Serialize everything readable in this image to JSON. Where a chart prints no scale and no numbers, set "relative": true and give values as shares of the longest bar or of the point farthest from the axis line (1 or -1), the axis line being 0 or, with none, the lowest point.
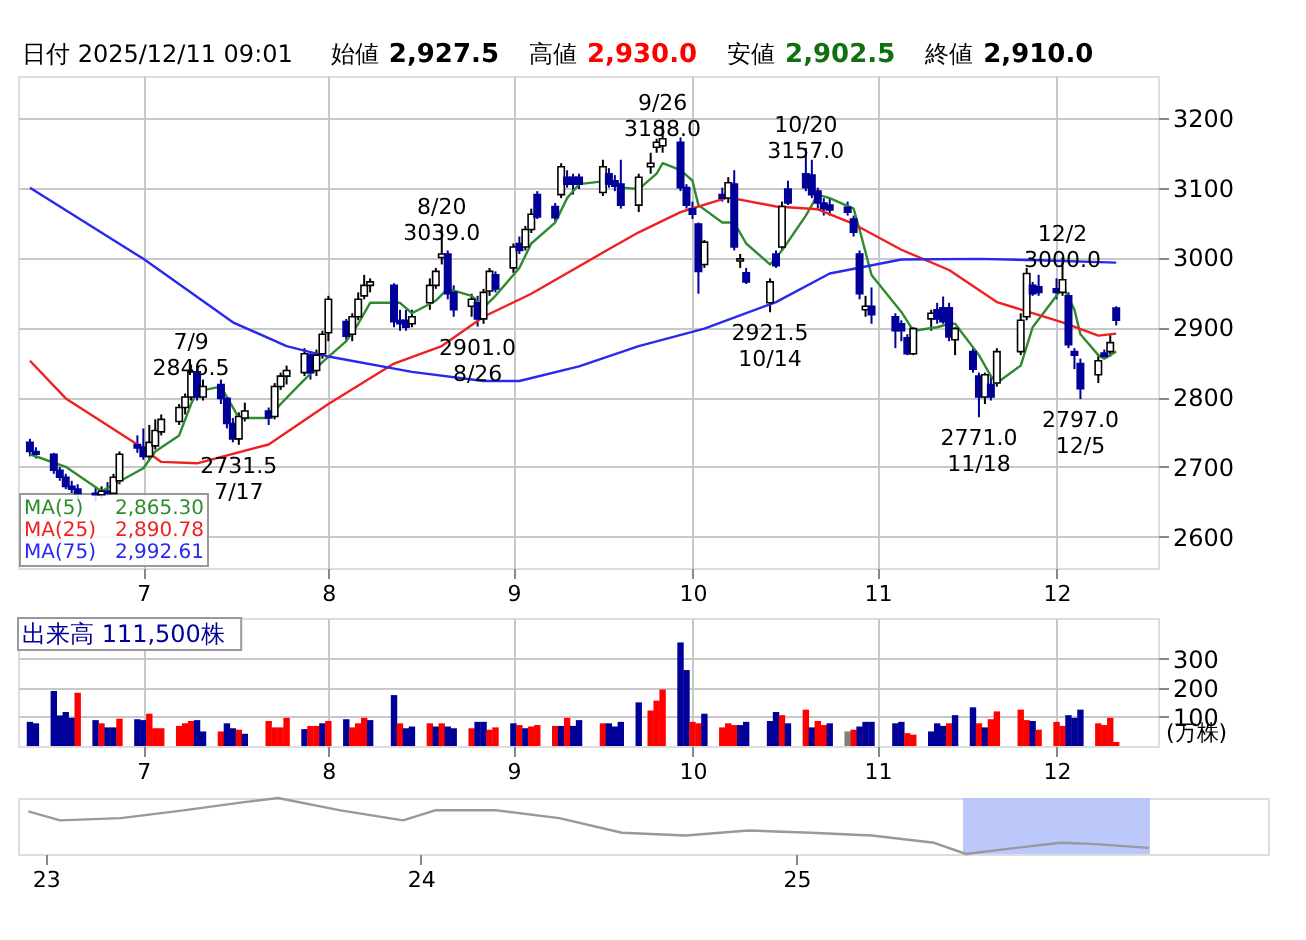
{
  "chart_data": [
    {
      "type": "candlestick",
      "title": "日付 2025/12/11 09:01",
      "annotations": [
        "始値 2,927.5",
        "高値 2,930.0",
        "安値 2,902.5",
        "終値 2,910.0",
        "2,865.30",
        "2,890.78",
        "2,992.61",
        {
          "text": "7/9\n2846.5",
          "x": "2025-07-09",
          "y": 2846.5
        },
        {
          "text": "2731.5\n7/17",
          "x": "2025-07-17",
          "y": 2731.5
        },
        {
          "text": "8/20\n3039.0",
          "x": "2025-08-20",
          "y": 3039
        },
        {
          "text": "2901.0\n8/26",
          "x": "2025-08-26",
          "y": 2901
        },
        {
          "text": "9/26\n3188.0",
          "x": "2025-09-26",
          "y": 3188
        },
        {
          "text": "2921.5\n10/14",
          "x": "2025-10-14",
          "y": 2921.5
        },
        {
          "text": "10/20\n3157.0",
          "x": "2025-10-20",
          "y": 3157
        },
        {
          "text": "2771.0\n11/18",
          "x": "2025-11-18",
          "y": 2771
        },
        {
          "text": "12/2\n3000.0",
          "x": "2025-12-02",
          "y": 3000
        },
        {
          "text": "2797.0\n12/5",
          "x": "2025-12-05",
          "y": 2797
        }
      ],
      "x": [
        "2025-06-12",
        "2025-06-13",
        "2025-06-16",
        "2025-06-17",
        "2025-06-18",
        "2025-06-19",
        "2025-06-20",
        "2025-06-23",
        "2025-06-24",
        "2025-06-25",
        "2025-06-26",
        "2025-06-27",
        "2025-06-30",
        "2025-07-01",
        "2025-07-02",
        "2025-07-03",
        "2025-07-04",
        "2025-07-07",
        "2025-07-08",
        "2025-07-09",
        "2025-07-10",
        "2025-07-11",
        "2025-07-14",
        "2025-07-15",
        "2025-07-16",
        "2025-07-17",
        "2025-07-18",
        "2025-07-22",
        "2025-07-23",
        "2025-07-24",
        "2025-07-25",
        "2025-07-28",
        "2025-07-29",
        "2025-07-30",
        "2025-07-31",
        "2025-08-01",
        "2025-08-04",
        "2025-08-05",
        "2025-08-06",
        "2025-08-07",
        "2025-08-08",
        "2025-08-12",
        "2025-08-13",
        "2025-08-14",
        "2025-08-15",
        "2025-08-18",
        "2025-08-19",
        "2025-08-20",
        "2025-08-21",
        "2025-08-22",
        "2025-08-25",
        "2025-08-26",
        "2025-08-27",
        "2025-08-28",
        "2025-08-29",
        "2025-09-01",
        "2025-09-02",
        "2025-09-03",
        "2025-09-04",
        "2025-09-05",
        "2025-09-08",
        "2025-09-09",
        "2025-09-10",
        "2025-09-11",
        "2025-09-12",
        "2025-09-16",
        "2025-09-17",
        "2025-09-18",
        "2025-09-19",
        "2025-09-22",
        "2025-09-24",
        "2025-09-25",
        "2025-09-26",
        "2025-09-29",
        "2025-09-30",
        "2025-10-01",
        "2025-10-02",
        "2025-10-03",
        "2025-10-06",
        "2025-10-07",
        "2025-10-08",
        "2025-10-09",
        "2025-10-10",
        "2025-10-14",
        "2025-10-15",
        "2025-10-16",
        "2025-10-17",
        "2025-10-20",
        "2025-10-21",
        "2025-10-22",
        "2025-10-23",
        "2025-10-24",
        "2025-10-27",
        "2025-10-28",
        "2025-10-29",
        "2025-10-30",
        "2025-10-31",
        "2025-11-04",
        "2025-11-05",
        "2025-11-06",
        "2025-11-07",
        "2025-11-10",
        "2025-11-11",
        "2025-11-12",
        "2025-11-13",
        "2025-11-14",
        "2025-11-17",
        "2025-11-18",
        "2025-11-19",
        "2025-11-20",
        "2025-11-21",
        "2025-11-25",
        "2025-11-26",
        "2025-11-27",
        "2025-11-28",
        "2025-12-01",
        "2025-12-02",
        "2025-12-03",
        "2025-12-04",
        "2025-12-05",
        "2025-12-08",
        "2025-12-09",
        "2025-12-10",
        "2025-12-11"
      ],
      "ohlc": [
        [
          2735,
          2740,
          2715,
          2722
        ],
        [
          2722,
          2728,
          2712,
          2718
        ],
        [
          2718,
          2720,
          2690,
          2695
        ],
        [
          2695,
          2700,
          2680,
          2685
        ],
        [
          2685,
          2690,
          2668,
          2672
        ],
        [
          2672,
          2680,
          2660,
          2668
        ],
        [
          2668,
          2675,
          2655,
          2662
        ],
        [
          2662,
          2670,
          2650,
          2660
        ],
        [
          2660,
          2672,
          2655,
          2665
        ],
        [
          2665,
          2678,
          2658,
          2662
        ],
        [
          2662,
          2690,
          2660,
          2685
        ],
        [
          2680,
          2722,
          2675,
          2718
        ],
        [
          2732,
          2745,
          2720,
          2727
        ],
        [
          2728,
          2755,
          2710,
          2715
        ],
        [
          2715,
          2760,
          2710,
          2735
        ],
        [
          2730,
          2768,
          2725,
          2752
        ],
        [
          2750,
          2775,
          2745,
          2768
        ],
        [
          2765,
          2790,
          2760,
          2785
        ],
        [
          2785,
          2805,
          2775,
          2800
        ],
        [
          2800,
          2846.5,
          2795,
          2836
        ],
        [
          2836,
          2840,
          2795,
          2800
        ],
        [
          2800,
          2825,
          2795,
          2815
        ],
        [
          2818,
          2825,
          2790,
          2798
        ],
        [
          2798,
          2800,
          2755,
          2762
        ],
        [
          2762,
          2770,
          2735,
          2740
        ],
        [
          2740,
          2778,
          2731.5,
          2772
        ],
        [
          2770,
          2792,
          2765,
          2780
        ],
        [
          2780,
          2785,
          2760,
          2770
        ],
        [
          2772,
          2820,
          2768,
          2815
        ],
        [
          2815,
          2835,
          2810,
          2830
        ],
        [
          2830,
          2845,
          2818,
          2838
        ],
        [
          2835,
          2870,
          2830,
          2862
        ],
        [
          2860,
          2865,
          2825,
          2835
        ],
        [
          2838,
          2868,
          2830,
          2860
        ],
        [
          2862,
          2895,
          2855,
          2890
        ],
        [
          2892,
          2945,
          2880,
          2940
        ],
        [
          2908,
          2912,
          2880,
          2887
        ],
        [
          2890,
          2920,
          2880,
          2915
        ],
        [
          2915,
          2950,
          2910,
          2940
        ],
        [
          2945,
          2975,
          2940,
          2960
        ],
        [
          2960,
          2970,
          2950,
          2965
        ],
        [
          2960,
          2963,
          2900,
          2908
        ],
        [
          2910,
          2925,
          2895,
          2905
        ],
        [
          2910,
          2925,
          2895,
          2900
        ],
        [
          2905,
          2925,
          2900,
          2915
        ],
        [
          2935,
          2970,
          2925,
          2960
        ],
        [
          2960,
          2985,
          2955,
          2980
        ],
        [
          3000,
          3039,
          2990,
          3005
        ],
        [
          3005,
          3010,
          2940,
          2948
        ],
        [
          2950,
          2960,
          2915,
          2925
        ],
        [
          2930,
          2948,
          2915,
          2940
        ],
        [
          2935,
          2945,
          2901,
          2912
        ],
        [
          2912,
          2955,
          2905,
          2950
        ],
        [
          2952,
          2985,
          2945,
          2980
        ],
        [
          2975,
          2980,
          2950,
          2955
        ],
        [
          2985,
          3020,
          2978,
          3015
        ],
        [
          3020,
          3030,
          3005,
          3010
        ],
        [
          3015,
          3045,
          3010,
          3040
        ],
        [
          3040,
          3070,
          3035,
          3062
        ],
        [
          3090,
          3095,
          3055,
          3058
        ],
        [
          3073,
          3078,
          3052,
          3057
        ],
        [
          3090,
          3135,
          3085,
          3130
        ],
        [
          3115,
          3125,
          3100,
          3105
        ],
        [
          3115,
          3120,
          3090,
          3105
        ],
        [
          3115,
          3120,
          3098,
          3105
        ],
        [
          3093,
          3140,
          3088,
          3130
        ],
        [
          3120,
          3128,
          3100,
          3105
        ],
        [
          3110,
          3118,
          3095,
          3102
        ],
        [
          3105,
          3140,
          3070,
          3075
        ],
        [
          3075,
          3120,
          3065,
          3115
        ],
        [
          3130,
          3150,
          3120,
          3135
        ],
        [
          3158,
          3170,
          3150,
          3165
        ],
        [
          3160,
          3188,
          3150,
          3170
        ],
        [
          3165,
          3172,
          3095,
          3100
        ],
        [
          3100,
          3105,
          3070,
          3075
        ],
        [
          3070,
          3080,
          3055,
          3062
        ],
        [
          3048,
          3050,
          2948,
          2980
        ],
        [
          2990,
          3025,
          2985,
          3022
        ],
        [
          3090,
          3100,
          3080,
          3085
        ],
        [
          3085,
          3115,
          3078,
          3107
        ],
        [
          3105,
          3125,
          3010,
          3015
        ],
        [
          2995,
          3005,
          2985,
          2998
        ],
        [
          2978,
          2985,
          2962,
          2965
        ],
        [
          2935,
          2970,
          2921.5,
          2965
        ],
        [
          3005,
          3010,
          2985,
          2988
        ],
        [
          3015,
          3080,
          3010,
          3073
        ],
        [
          3098,
          3110,
          3075,
          3078
        ],
        [
          3120,
          3157,
          3095,
          3100
        ],
        [
          3118,
          3140,
          3085,
          3090
        ],
        [
          3095,
          3100,
          3070,
          3078
        ],
        [
          3078,
          3085,
          3060,
          3070
        ],
        [
          3075,
          3085,
          3060,
          3068
        ],
        [
          3072,
          3080,
          3060,
          3065
        ],
        [
          3055,
          3060,
          3030,
          3036
        ],
        [
          3005,
          3010,
          2940,
          2948
        ],
        [
          2925,
          2945,
          2915,
          2930
        ],
        [
          2930,
          2957,
          2905,
          2918
        ],
        [
          2915,
          2920,
          2870,
          2895
        ],
        [
          2905,
          2910,
          2880,
          2895
        ],
        [
          2885,
          2890,
          2860,
          2862
        ],
        [
          2862,
          2900,
          2860,
          2898
        ],
        [
          2912,
          2925,
          2895,
          2920
        ],
        [
          2925,
          2935,
          2905,
          2912
        ],
        [
          2928,
          2944,
          2905,
          2908
        ],
        [
          2928,
          2935,
          2880,
          2886
        ],
        [
          2882,
          2900,
          2860,
          2898
        ],
        [
          2865,
          2870,
          2835,
          2840
        ],
        [
          2830,
          2835,
          2771,
          2800
        ],
        [
          2800,
          2835,
          2790,
          2832
        ],
        [
          2818,
          2830,
          2795,
          2800
        ],
        [
          2820,
          2870,
          2815,
          2865
        ],
        [
          2865,
          2920,
          2860,
          2910
        ],
        [
          2915,
          2985,
          2910,
          2977
        ],
        [
          2960,
          2965,
          2945,
          2948
        ],
        [
          2958,
          2975,
          2945,
          2950
        ],
        [
          2955,
          2970,
          2940,
          2950
        ],
        [
          2950,
          3000,
          2945,
          2968
        ],
        [
          2945,
          2950,
          2870,
          2875
        ],
        [
          2865,
          2870,
          2840,
          2860
        ],
        [
          2848,
          2855,
          2797,
          2812
        ],
        [
          2832,
          2860,
          2820,
          2852
        ],
        [
          2863,
          2868,
          2855,
          2858
        ],
        [
          2865,
          2890,
          2858,
          2878
        ],
        [
          2927.5,
          2930,
          2902.5,
          2910
        ]
      ],
      "series": [
        {
          "name": "MA(5)",
          "type": "line",
          "color": "#2e8b2e",
          "x": [
            "2025-06-12",
            "2025-06-18",
            "2025-06-24",
            "2025-07-01",
            "2025-07-03",
            "2025-07-07",
            "2025-07-09",
            "2025-07-10",
            "2025-07-14",
            "2025-07-15",
            "2025-07-17",
            "2025-07-22",
            "2025-07-24",
            "2025-07-28",
            "2025-07-31",
            "2025-08-04",
            "2025-08-06",
            "2025-08-08",
            "2025-08-13",
            "2025-08-15",
            "2025-08-19",
            "2025-08-21",
            "2025-08-25",
            "2025-08-27",
            "2025-08-29",
            "2025-09-02",
            "2025-09-04",
            "2025-09-08",
            "2025-09-10",
            "2025-09-12",
            "2025-09-17",
            "2025-09-19",
            "2025-09-22",
            "2025-09-25",
            "2025-09-26",
            "2025-09-29",
            "2025-10-01",
            "2025-10-02",
            "2025-10-06",
            "2025-10-08",
            "2025-10-10",
            "2025-10-14",
            "2025-10-16",
            "2025-10-20",
            "2025-10-22",
            "2025-10-24",
            "2025-10-28",
            "2025-10-29",
            "2025-10-31",
            "2025-11-05",
            "2025-11-07",
            "2025-11-11",
            "2025-11-13",
            "2025-11-14",
            "2025-11-18",
            "2025-11-20",
            "2025-11-21",
            "2025-11-25",
            "2025-11-27",
            "2025-12-01",
            "2025-12-02",
            "2025-12-04",
            "2025-12-05",
            "2025-12-08",
            "2025-12-09",
            "2025-12-11"
          ],
          "values": [
            2718,
            2700,
            2665,
            2698,
            2722,
            2745,
            2790,
            2808,
            2815,
            2800,
            2770,
            2770,
            2790,
            2825,
            2850,
            2880,
            2905,
            2935,
            2935,
            2920,
            2938,
            2955,
            2945,
            2928,
            2945,
            2985,
            3020,
            3050,
            3085,
            3105,
            3110,
            3100,
            3098,
            3120,
            3135,
            3125,
            3110,
            3075,
            3050,
            3050,
            3020,
            2990,
            3010,
            3060,
            3090,
            3085,
            3070,
            3040,
            2975,
            2922,
            2895,
            2900,
            2905,
            2905,
            2860,
            2830,
            2820,
            2845,
            2900,
            2945,
            2960,
            2925,
            2890,
            2860,
            2855,
            2865.3
          ]
        },
        {
          "name": "MA(25)",
          "type": "line",
          "color": "#f02020",
          "x": [
            "2025-06-12",
            "2025-06-18",
            "2025-06-30",
            "2025-07-04",
            "2025-07-10",
            "2025-07-22",
            "2025-08-01",
            "2025-08-12",
            "2025-08-20",
            "2025-08-27",
            "2025-09-04",
            "2025-09-16",
            "2025-09-22",
            "2025-09-29",
            "2025-10-07",
            "2025-10-15",
            "2025-10-22",
            "2025-10-28",
            "2025-11-05",
            "2025-11-13",
            "2025-11-21",
            "2025-12-02",
            "2025-12-08",
            "2025-12-11"
          ],
          "values": [
            2852,
            2798,
            2732,
            2707,
            2705,
            2732,
            2790,
            2848,
            2873,
            2915,
            2948,
            3007,
            3036,
            3065,
            3086,
            3073,
            3069,
            3048,
            3011,
            2982,
            2936,
            2907,
            2888,
            2890.78
          ]
        },
        {
          "name": "MA(75)",
          "type": "line",
          "color": "#2828f0",
          "x": [
            "2025-06-12",
            "2025-07-01",
            "2025-07-16",
            "2025-07-25",
            "2025-08-01",
            "2025-08-15",
            "2025-08-27",
            "2025-09-02",
            "2025-09-12",
            "2025-09-22",
            "2025-10-03",
            "2025-10-15",
            "2025-10-24",
            "2025-11-05",
            "2025-11-18",
            "2025-11-28",
            "2025-12-11"
          ],
          "values": [
            3100,
            2998,
            2907,
            2873,
            2858,
            2836,
            2823,
            2823,
            2844,
            2873,
            2898,
            2936,
            2977,
            2997,
            2998,
            2996,
            2992.61
          ]
        }
      ],
      "xlim": [
        "2025-06-10",
        "2025-12-18"
      ],
      "xticks": [
        {
          "value": "2025-07-01",
          "label": "7"
        },
        {
          "value": "2025-08-01",
          "label": "8"
        },
        {
          "value": "2025-09-01",
          "label": "9"
        },
        {
          "value": "2025-10-01",
          "label": "10"
        },
        {
          "value": "2025-11-01",
          "label": "11"
        },
        {
          "value": "2025-12-01",
          "label": "12"
        }
      ],
      "ylim": [
        2555,
        3260
      ],
      "yticks": [
        2600,
        2700,
        2800,
        2900,
        3000,
        3100,
        3200
      ],
      "grid": true,
      "legend": "bottom left"
    },
    {
      "type": "bar",
      "title": "出来高 111,500株",
      "ylabel": "(万株)",
      "x": [
        "2025-06-12",
        "2025-06-13",
        "2025-06-16",
        "2025-06-17",
        "2025-06-18",
        "2025-06-19",
        "2025-06-20",
        "2025-06-23",
        "2025-06-24",
        "2025-06-25",
        "2025-06-26",
        "2025-06-27",
        "2025-06-30",
        "2025-07-01",
        "2025-07-02",
        "2025-07-03",
        "2025-07-04",
        "2025-07-07",
        "2025-07-08",
        "2025-07-09",
        "2025-07-10",
        "2025-07-11",
        "2025-07-14",
        "2025-07-15",
        "2025-07-16",
        "2025-07-17",
        "2025-07-18",
        "2025-07-22",
        "2025-07-23",
        "2025-07-24",
        "2025-07-25",
        "2025-07-28",
        "2025-07-29",
        "2025-07-30",
        "2025-07-31",
        "2025-08-01",
        "2025-08-04",
        "2025-08-05",
        "2025-08-06",
        "2025-08-07",
        "2025-08-08",
        "2025-08-12",
        "2025-08-13",
        "2025-08-14",
        "2025-08-15",
        "2025-08-18",
        "2025-08-19",
        "2025-08-20",
        "2025-08-21",
        "2025-08-22",
        "2025-08-25",
        "2025-08-26",
        "2025-08-27",
        "2025-08-28",
        "2025-08-29",
        "2025-09-01",
        "2025-09-02",
        "2025-09-03",
        "2025-09-04",
        "2025-09-05",
        "2025-09-08",
        "2025-09-09",
        "2025-09-10",
        "2025-09-11",
        "2025-09-12",
        "2025-09-16",
        "2025-09-17",
        "2025-09-18",
        "2025-09-19",
        "2025-09-22",
        "2025-09-24",
        "2025-09-25",
        "2025-09-26",
        "2025-09-29",
        "2025-09-30",
        "2025-10-01",
        "2025-10-02",
        "2025-10-03",
        "2025-10-06",
        "2025-10-07",
        "2025-10-08",
        "2025-10-09",
        "2025-10-10",
        "2025-10-14",
        "2025-10-15",
        "2025-10-16",
        "2025-10-17",
        "2025-10-20",
        "2025-10-21",
        "2025-10-22",
        "2025-10-23",
        "2025-10-24",
        "2025-10-27",
        "2025-10-28",
        "2025-10-29",
        "2025-10-30",
        "2025-10-31",
        "2025-11-04",
        "2025-11-05",
        "2025-11-06",
        "2025-11-07",
        "2025-11-10",
        "2025-11-11",
        "2025-11-12",
        "2025-11-13",
        "2025-11-14",
        "2025-11-17",
        "2025-11-18",
        "2025-11-19",
        "2025-11-20",
        "2025-11-21",
        "2025-11-25",
        "2025-11-26",
        "2025-11-27",
        "2025-11-28",
        "2025-12-01",
        "2025-12-02",
        "2025-12-03",
        "2025-12-04",
        "2025-12-05",
        "2025-12-08",
        "2025-12-09",
        "2025-12-10",
        "2025-12-11"
      ],
      "values": [
        83,
        78,
        189,
        105,
        117,
        97,
        183,
        89,
        78,
        64,
        64,
        94,
        92,
        89,
        111,
        61,
        61,
        69,
        78,
        86,
        89,
        50,
        50,
        78,
        61,
        56,
        42,
        86,
        64,
        64,
        97,
        58,
        69,
        69,
        78,
        86,
        92,
        64,
        78,
        97,
        89,
        175,
        78,
        61,
        67,
        78,
        67,
        78,
        67,
        61,
        61,
        83,
        83,
        56,
        64,
        78,
        72,
        61,
        67,
        72,
        69,
        69,
        97,
        69,
        89,
        78,
        78,
        67,
        83,
        150,
        122,
        156,
        194,
        356,
        261,
        83,
        78,
        111,
        64,
        78,
        72,
        72,
        83,
        86,
        117,
        106,
        78,
        125,
        64,
        86,
        72,
        78,
        50,
        56,
        67,
        83,
        83,
        78,
        83,
        44,
        39,
        50,
        78,
        69,
        78,
        106,
        133,
        78,
        64,
        92,
        119,
        125,
        89,
        86,
        56,
        83,
        69,
        106,
        97,
        125,
        78,
        72,
        97,
        14
      ],
      "colors": [
        "#000099",
        "#000099",
        "#000099",
        "#000099",
        "#000099",
        "#000099",
        "#ff0000",
        "#000099",
        "#ff0000",
        "#000099",
        "#000099",
        "#ff0000",
        "#000099",
        "#000099",
        "#ff0000",
        "#ff0000",
        "#ff0000",
        "#ff0000",
        "#ff0000",
        "#ff0000",
        "#000099",
        "#000099",
        "#ff0000",
        "#000099",
        "#000099",
        "#ff0000",
        "#000099",
        "#ff0000",
        "#ff0000",
        "#ff0000",
        "#ff0000",
        "#000099",
        "#ff0000",
        "#ff0000",
        "#000099",
        "#ff0000",
        "#000099",
        "#ff0000",
        "#ff0000",
        "#ff0000",
        "#000099",
        "#000099",
        "#ff0000",
        "#000099",
        "#000099",
        "#ff0000",
        "#000099",
        "#ff0000",
        "#000099",
        "#000099",
        "#ff0000",
        "#000099",
        "#000099",
        "#ff0000",
        "#ff0000",
        "#000099",
        "#ff0000",
        "#000099",
        "#ff0000",
        "#ff0000",
        "#ff0000",
        "#000099",
        "#ff0000",
        "#000099",
        "#000099",
        "#ff0000",
        "#000099",
        "#000099",
        "#000099",
        "#000099",
        "#ff0000",
        "#ff0000",
        "#ff0000",
        "#000099",
        "#000099",
        "#ff0000",
        "#ff0000",
        "#000099",
        "#ff0000",
        "#ff0000",
        "#ff0000",
        "#000099",
        "#000099",
        "#000099",
        "#000099",
        "#ff0000",
        "#000099",
        "#ff0000",
        "#000099",
        "#ff0000",
        "#ff0000",
        "#000099",
        "#808080",
        "#ff0000",
        "#000099",
        "#000099",
        "#000099",
        "#000099",
        "#000099",
        "#ff0000",
        "#ff0000",
        "#000099",
        "#000099",
        "#000099",
        "#ff0000",
        "#000099",
        "#000099",
        "#ff0000",
        "#000099",
        "#ff0000",
        "#ff0000",
        "#ff0000",
        "#ff0000",
        "#000099",
        "#ff0000",
        "#ff0000",
        "#ff0000",
        "#000099",
        "#000099",
        "#000099",
        "#ff0000",
        "#ff0000",
        "#ff0000",
        "#ff0000"
      ],
      "xlim": [
        "2025-06-10",
        "2025-12-18"
      ],
      "xticks": [
        {
          "value": "2025-07-01",
          "label": "7"
        },
        {
          "value": "2025-08-01",
          "label": "8"
        },
        {
          "value": "2025-09-01",
          "label": "9"
        },
        {
          "value": "2025-10-01",
          "label": "10"
        },
        {
          "value": "2025-11-01",
          "label": "11"
        },
        {
          "value": "2025-12-01",
          "label": "12"
        }
      ],
      "ylim": [
        0,
        440
      ],
      "yticks": [
        100,
        200,
        300
      ],
      "grid": true
    },
    {
      "type": "line",
      "relative": true,
      "series": [
        {
          "color": "#999999",
          "x": [
            "2022-12-15",
            "2023-01-15",
            "2023-03-15",
            "2023-05-15",
            "2023-07-15",
            "2023-08-15",
            "2023-10-15",
            "2023-12-15",
            "2024-01-15",
            "2024-03-15",
            "2024-05-15",
            "2024-07-15",
            "2024-09-15",
            "2024-11-15",
            "2025-01-15",
            "2025-03-15",
            "2025-05-15",
            "2025-06-15",
            "2025-07-15",
            "2025-09-15",
            "2025-10-15",
            "2025-12-10"
          ],
          "values": [
            0.76,
            0.6,
            0.64,
            0.78,
            0.93,
            1,
            0.78,
            0.6,
            0.78,
            0.78,
            0.64,
            0.38,
            0.33,
            0.42,
            0.38,
            0.33,
            0.2,
            0,
            0.07,
            0.2,
            0.18,
            0.11
          ]
        }
      ],
      "bands": [
        {
          "axis": "x",
          "from": "2025-06-12",
          "to": "2025-12-11",
          "color": "#b4c2f8"
        }
      ],
      "xlim": [
        "2022-12-05",
        "2026-04-05"
      ],
      "xticks": [
        {
          "value": "2023-01-01",
          "label": "23"
        },
        {
          "value": "2024-01-01",
          "label": "24"
        },
        {
          "value": "2025-01-01",
          "label": "25"
        }
      ]
    }
  ]
}
